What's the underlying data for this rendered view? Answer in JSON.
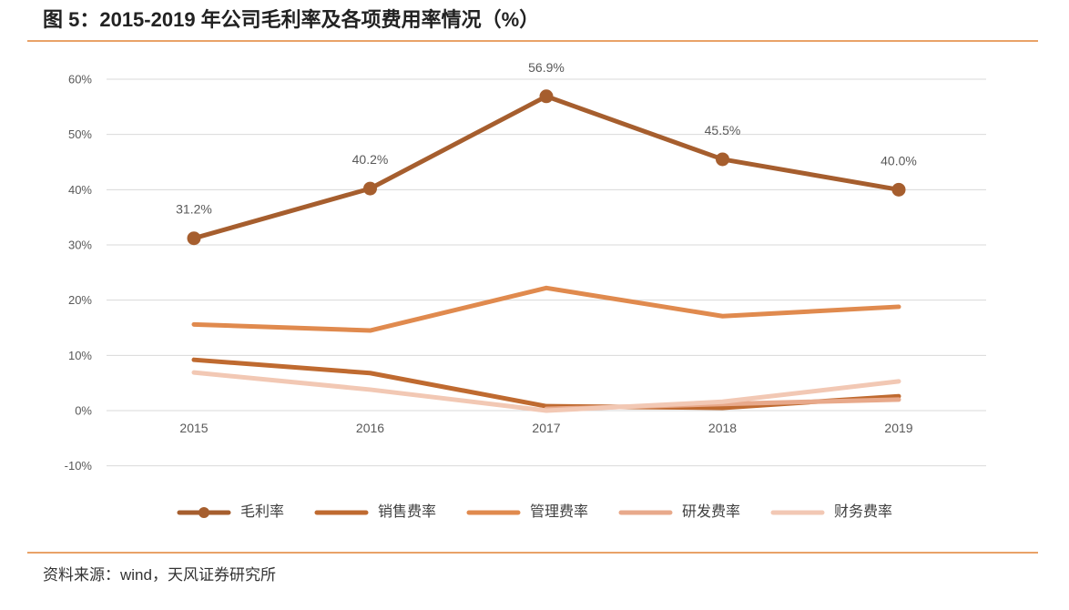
{
  "chart_data": {
    "type": "line",
    "title": "图 5：2015-2019 年公司毛利率及各项费用率情况（%）",
    "categories": [
      "2015",
      "2016",
      "2017",
      "2018",
      "2019"
    ],
    "ylim": [
      -10,
      60
    ],
    "y_ticks": [
      60,
      50,
      40,
      30,
      20,
      10,
      0,
      -10
    ],
    "y_tick_labels": [
      "60%",
      "50%",
      "40%",
      "30%",
      "20%",
      "10%",
      "0%",
      "-10%"
    ],
    "grid": true,
    "legend": "bottom",
    "series": [
      {
        "name": "毛利率",
        "values": [
          31.2,
          40.2,
          56.9,
          45.5,
          40.0
        ],
        "color": "#A65E2E",
        "markers": true,
        "data_labels": [
          "31.2%",
          "40.2%",
          "56.9%",
          "45.5%",
          "40.0%"
        ]
      },
      {
        "name": "销售费率",
        "values": [
          9.2,
          6.8,
          0.8,
          0.5,
          2.6
        ],
        "color": "#BF6A30"
      },
      {
        "name": "管理费率",
        "values": [
          15.6,
          14.5,
          22.2,
          17.1,
          18.8
        ],
        "color": "#E08A4E"
      },
      {
        "name": "研发费率",
        "values": [
          null,
          null,
          0.3,
          1.2,
          2.0
        ],
        "color": "#E8A98B"
      },
      {
        "name": "财务费率",
        "values": [
          6.9,
          3.8,
          0.0,
          1.6,
          5.3
        ],
        "color": "#F2C8B4"
      }
    ]
  },
  "source_note": "资料来源：wind，天风证券研究所",
  "colors": {
    "accent_rule": "#E9A268"
  }
}
